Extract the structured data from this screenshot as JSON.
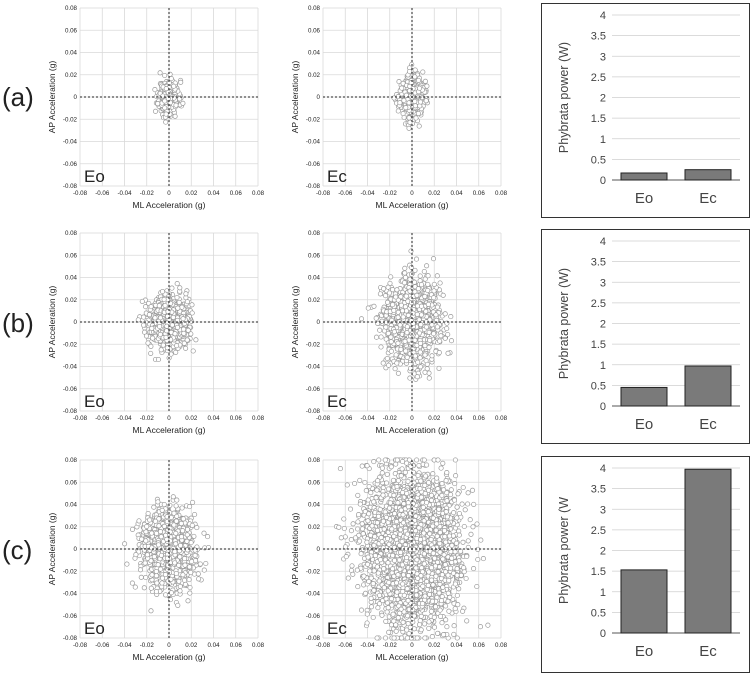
{
  "rows": [
    {
      "label": "(a)",
      "scatter": [
        {
          "condition": "Eo",
          "spread_ml": 0.0045,
          "spread_ap": 0.0075,
          "n": 360,
          "seed": 11
        },
        {
          "condition": "Ec",
          "spread_ml": 0.0055,
          "spread_ap": 0.0095,
          "n": 420,
          "seed": 23
        }
      ],
      "bar_ylabel": "Phybrata power (W)"
    },
    {
      "label": "(b)",
      "scatter": [
        {
          "condition": "Eo",
          "spread_ml": 0.0085,
          "spread_ap": 0.0115,
          "n": 900,
          "seed": 37
        },
        {
          "condition": "Ec",
          "spread_ml": 0.012,
          "spread_ap": 0.018,
          "n": 1400,
          "seed": 41
        }
      ],
      "bar_ylabel": "Phybrata power (W)"
    },
    {
      "label": "(c)",
      "scatter": [
        {
          "condition": "Eo",
          "spread_ml": 0.0115,
          "spread_ap": 0.016,
          "n": 1400,
          "seed": 53
        },
        {
          "condition": "Ec",
          "spread_ml": 0.02,
          "spread_ap": 0.032,
          "n": 3600,
          "seed": 67
        }
      ],
      "bar_ylabel": "Phybrata power (W"
    }
  ],
  "scatter_axes": {
    "xlabel": "ML Acceleration (g)",
    "ylabel": "AP Acceleration (g)",
    "xlim": [
      -0.08,
      0.08
    ],
    "ylim": [
      -0.08,
      0.08
    ],
    "ticks": [
      "-0.08",
      "-0.06",
      "-0.04",
      "-0.02",
      "0",
      "0.02",
      "0.04",
      "0.06",
      "0.08"
    ]
  },
  "chart_data": [
    {
      "type": "bar",
      "title": "",
      "categories": [
        "Eo",
        "Ec"
      ],
      "values": [
        0.17,
        0.25
      ],
      "ylabel": "Phybrata power (W)",
      "ylim": [
        0,
        4
      ],
      "yticks": [
        "0",
        "0.5",
        "1",
        "1.5",
        "2",
        "2.5",
        "3",
        "3.5",
        "4"
      ]
    },
    {
      "type": "bar",
      "title": "",
      "categories": [
        "Eo",
        "Ec"
      ],
      "values": [
        0.45,
        0.97
      ],
      "ylabel": "Phybrata power (W)",
      "ylim": [
        0,
        4
      ],
      "yticks": [
        "0",
        "0.5",
        "1",
        "1.5",
        "2",
        "2.5",
        "3",
        "3.5",
        "4"
      ]
    },
    {
      "type": "bar",
      "title": "",
      "categories": [
        "Eo",
        "Ec"
      ],
      "values": [
        1.53,
        3.97
      ],
      "ylabel": "Phybrata power (W",
      "ylim": [
        0,
        4
      ],
      "yticks": [
        "0",
        "0.5",
        "1",
        "1.5",
        "2",
        "2.5",
        "3",
        "3.5",
        "4"
      ]
    }
  ],
  "colors": {
    "bar_fill": "#7a7a7a",
    "grid": "#d9d9d9",
    "marker_edge": "#9a9a9a"
  }
}
